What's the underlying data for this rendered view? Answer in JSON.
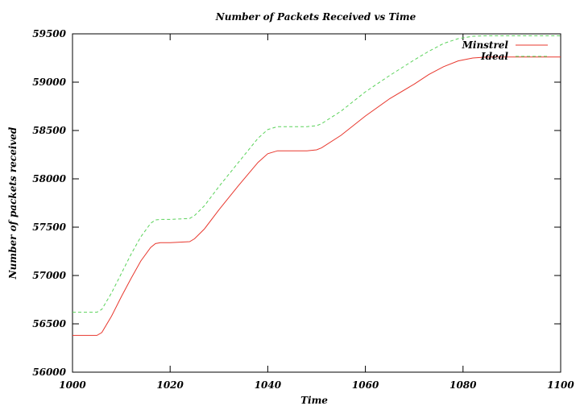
{
  "chart_data": {
    "type": "line",
    "title": "Number of Packets Received vs Time",
    "xlabel": "Time",
    "ylabel": "Number of packets received",
    "xlim": [
      1000,
      1100
    ],
    "ylim": [
      56000,
      59500
    ],
    "xticks": [
      1000,
      1020,
      1040,
      1060,
      1080,
      1100
    ],
    "yticks": [
      56000,
      56500,
      57000,
      57500,
      58000,
      58500,
      59000,
      59500
    ],
    "grid": false,
    "legend_position": "top-right",
    "series": [
      {
        "name": "Minstrel",
        "color": "#e8382e",
        "dash": "solid",
        "x": [
          1000,
          1005,
          1006,
          1008,
          1010,
          1012,
          1014,
          1016,
          1017,
          1018,
          1020,
          1024,
          1025,
          1027,
          1030,
          1034,
          1038,
          1040,
          1042,
          1048,
          1050,
          1051,
          1055,
          1060,
          1065,
          1070,
          1073,
          1076,
          1079,
          1082,
          1085,
          1090,
          1095,
          1100
        ],
        "values": [
          56380,
          56380,
          56410,
          56580,
          56780,
          56970,
          57150,
          57290,
          57330,
          57340,
          57340,
          57350,
          57380,
          57480,
          57680,
          57930,
          58170,
          58260,
          58290,
          58290,
          58300,
          58320,
          58450,
          58650,
          58830,
          58980,
          59080,
          59160,
          59220,
          59250,
          59260,
          59260,
          59260,
          59260
        ]
      },
      {
        "name": "Ideal",
        "color": "#5ad25a",
        "dash": "dashed",
        "x": [
          1000,
          1005,
          1006,
          1008,
          1010,
          1012,
          1014,
          1016,
          1017,
          1018,
          1020,
          1024,
          1025,
          1027,
          1030,
          1034,
          1038,
          1040,
          1042,
          1048,
          1050,
          1051,
          1055,
          1060,
          1065,
          1070,
          1073,
          1076,
          1079,
          1082,
          1085,
          1090,
          1095,
          1100
        ],
        "values": [
          56620,
          56620,
          56650,
          56820,
          57020,
          57220,
          57400,
          57540,
          57575,
          57580,
          57580,
          57590,
          57620,
          57720,
          57920,
          58170,
          58420,
          58510,
          58540,
          58540,
          58550,
          58570,
          58700,
          58900,
          59070,
          59230,
          59320,
          59400,
          59450,
          59475,
          59480,
          59480,
          59480,
          59480
        ]
      }
    ]
  }
}
